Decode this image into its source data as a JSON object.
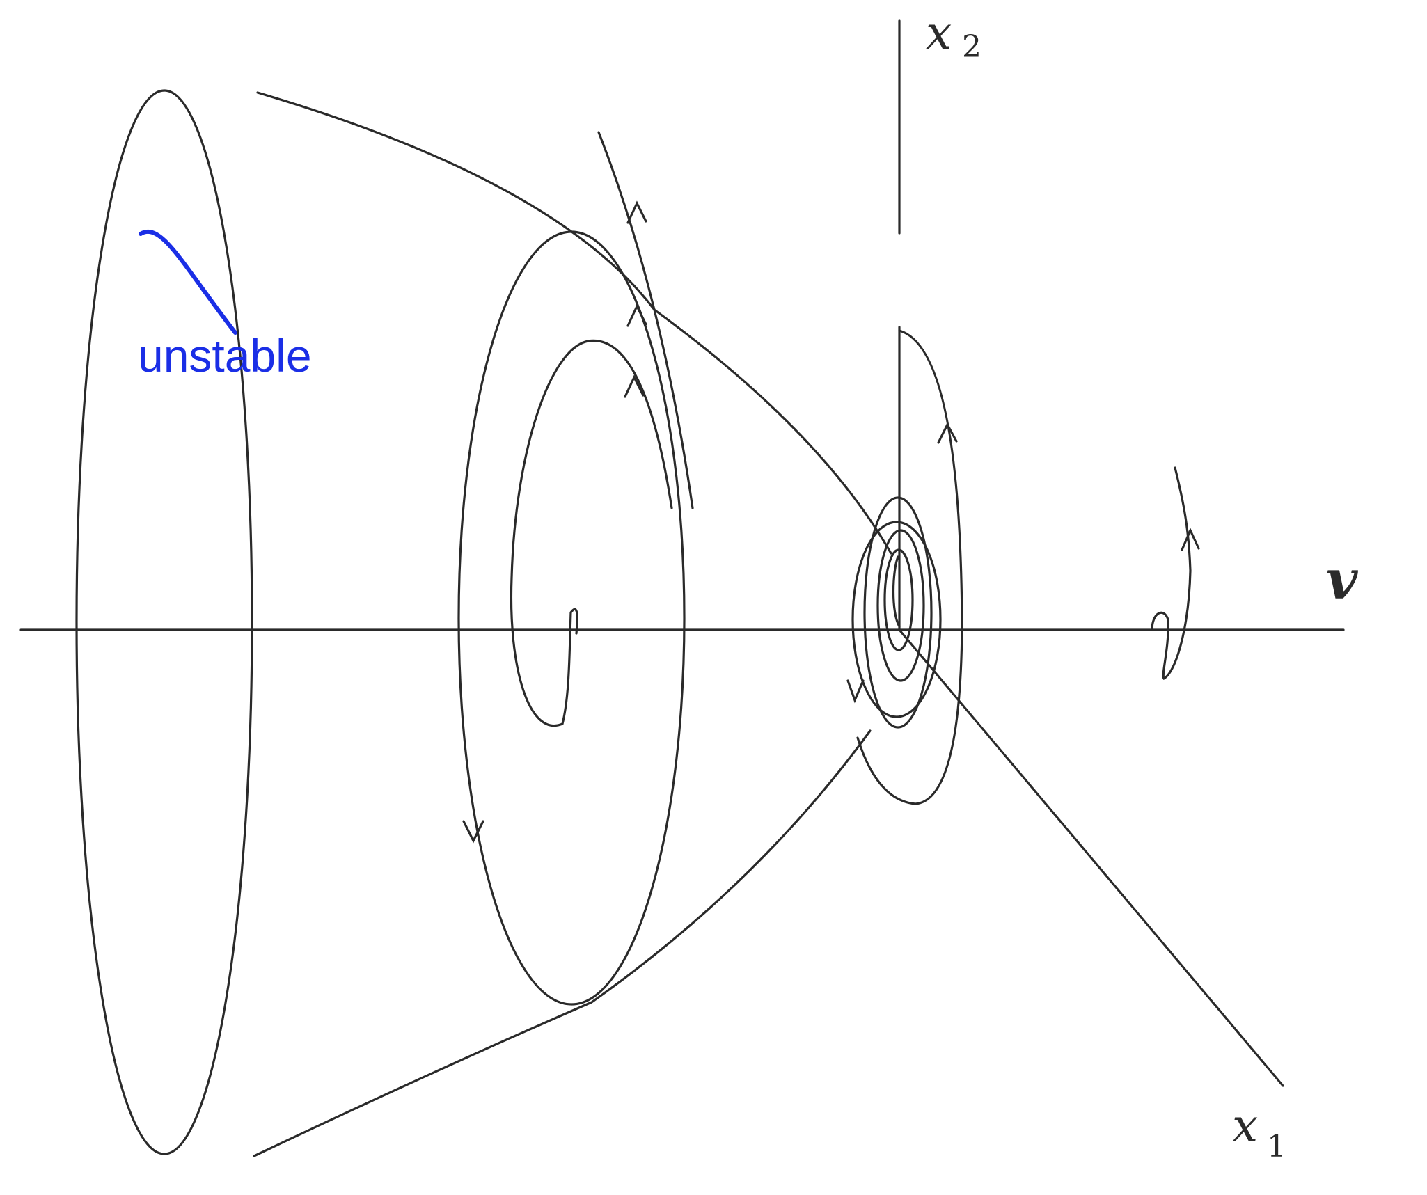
{
  "axes": {
    "horizontal": {
      "label": "v"
    },
    "vertical": {
      "label": "x",
      "subscript": "2"
    },
    "diagonal": {
      "label": "x",
      "subscript": "1"
    }
  },
  "annotation": {
    "text": "unstable",
    "color": "#1a2ee6"
  },
  "colors": {
    "line": "#2a2a2a",
    "background": "#ffffff"
  }
}
